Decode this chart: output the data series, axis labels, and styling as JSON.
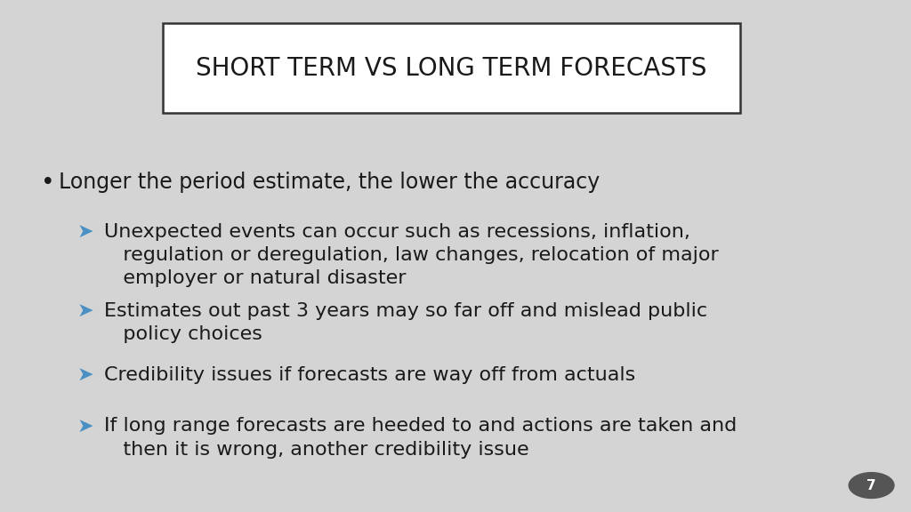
{
  "title": "SHORT TERM VS LONG TERM FORECASTS",
  "background_color": "#d4d4d4",
  "title_box_color": "#ffffff",
  "title_box_edge_color": "#333333",
  "title_color": "#1a1a1a",
  "bullet_color": "#1a1a1a",
  "arrow_color": "#4a90c4",
  "bullet_text": "Longer the period estimate, the lower the accuracy",
  "sub_bullets": [
    "Unexpected events can occur such as recessions, inflation,\n   regulation or deregulation, law changes, relocation of major\n   employer or natural disaster",
    "Estimates out past 3 years may so far off and mislead public\n   policy choices",
    "Credibility issues if forecasts are way off from actuals",
    "If long range forecasts are heeded to and actions are taken and\n   then it is wrong, another credibility issue"
  ],
  "page_number": "7",
  "page_num_color": "#555555",
  "title_fontsize": 20,
  "bullet_fontsize": 17,
  "sub_bullet_fontsize": 16
}
